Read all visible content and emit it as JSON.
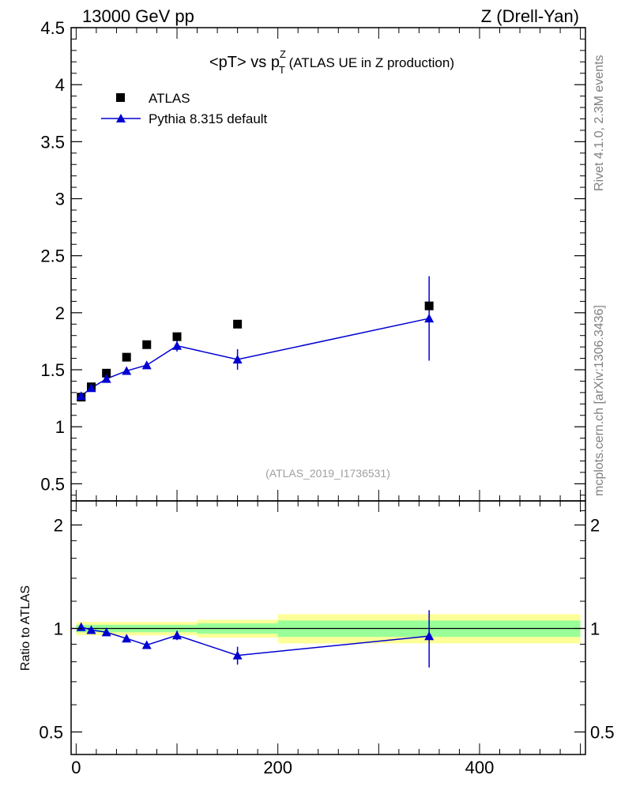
{
  "header": {
    "left": "13000 GeV pp",
    "right": "Z (Drell-Yan)"
  },
  "side": {
    "rivet": "Rivet 4.1.0,  2.3M events",
    "mcplots": "mcplots.cern.ch [arXiv:1306.3436]"
  },
  "chart_data": [
    {
      "panel": "main",
      "type": "scatter",
      "title_main": "<pT> vs p",
      "title_sup": "Z",
      "title_sub": "T",
      "title_rest": " (ATLAS UE in Z production)",
      "analysis_label": "(ATLAS_2019_I1736531)",
      "xlim": [
        -5,
        505
      ],
      "ylim": [
        0.35,
        4.5
      ],
      "yticks": [
        0.5,
        1,
        1.5,
        2,
        2.5,
        3,
        3.5,
        4,
        4.5
      ],
      "ytick_labels": [
        "0.5",
        "1",
        "1.5",
        "2",
        "2.5",
        "3",
        "3.5",
        "4",
        "4.5"
      ],
      "legend": [
        {
          "name": "ATLAS",
          "marker": "square",
          "color": "#000000"
        },
        {
          "name": "Pythia 8.315 default",
          "marker": "triangle",
          "color": "#0000d0"
        }
      ],
      "series": [
        {
          "name": "ATLAS",
          "x": [
            5,
            15,
            30,
            50,
            70,
            100,
            160,
            350
          ],
          "y": [
            1.26,
            1.35,
            1.47,
            1.61,
            1.72,
            1.79,
            1.9,
            2.06
          ]
        },
        {
          "name": "Pythia 8.315 default",
          "x": [
            5,
            15,
            30,
            50,
            70,
            100,
            160,
            350
          ],
          "y": [
            1.27,
            1.34,
            1.42,
            1.49,
            1.54,
            1.71,
            1.59,
            1.95
          ],
          "yerr": [
            0.01,
            0.01,
            0.01,
            0.02,
            0.03,
            0.05,
            0.09,
            0.37
          ]
        }
      ]
    },
    {
      "panel": "ratio",
      "type": "line",
      "ylabel": "Ratio to ATLAS",
      "xlim": [
        -5,
        505
      ],
      "ylim": [
        0.43,
        2.35
      ],
      "ylog": true,
      "yticks": [
        0.5,
        1,
        2
      ],
      "ytick_labels": [
        "0.5",
        "1",
        "2"
      ],
      "xticks": [
        0,
        200,
        400
      ],
      "xtick_labels": [
        "0",
        "200",
        "400"
      ],
      "bands": [
        {
          "xlo": 0,
          "xhi": 120,
          "inner": [
            0.975,
            1.025
          ],
          "outer": [
            0.955,
            1.045
          ]
        },
        {
          "xlo": 120,
          "xhi": 200,
          "inner": [
            0.965,
            1.035
          ],
          "outer": [
            0.94,
            1.06
          ]
        },
        {
          "xlo": 200,
          "xhi": 500,
          "inner": [
            0.945,
            1.055
          ],
          "outer": [
            0.905,
            1.1
          ]
        }
      ],
      "series": [
        {
          "name": "Pythia 8.315 default",
          "x": [
            5,
            15,
            30,
            50,
            70,
            100,
            160,
            350
          ],
          "y": [
            1.01,
            0.99,
            0.975,
            0.935,
            0.895,
            0.955,
            0.835,
            0.95
          ],
          "yerr": [
            0.01,
            0.01,
            0.01,
            0.01,
            0.015,
            0.03,
            0.05,
            0.18
          ]
        }
      ]
    }
  ]
}
